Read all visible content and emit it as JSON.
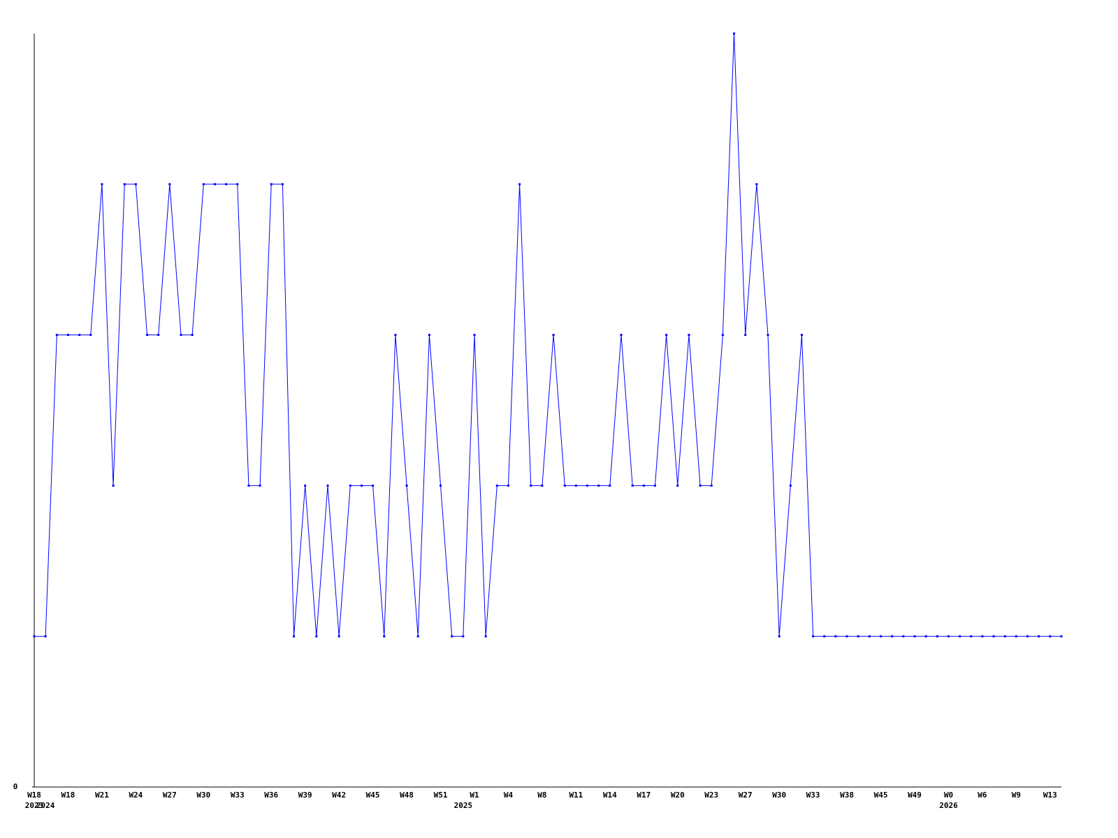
{
  "chart_data": {
    "type": "line",
    "categories": [
      "W18",
      null,
      null,
      "W18",
      null,
      null,
      "W21",
      null,
      null,
      "W24",
      null,
      null,
      "W27",
      null,
      null,
      "W30",
      null,
      null,
      "W33",
      null,
      null,
      "W36",
      null,
      null,
      "W39",
      null,
      null,
      "W42",
      null,
      null,
      "W45",
      null,
      null,
      "W48",
      null,
      null,
      "W51",
      null,
      null,
      "W1",
      null,
      null,
      "W4",
      null,
      null,
      "W8",
      null,
      null,
      "W11",
      null,
      null,
      "W14",
      null,
      null,
      "W17",
      null,
      null,
      "W20",
      null,
      null,
      "W23",
      null,
      null,
      "W27",
      null,
      null,
      "W30",
      null,
      null,
      "W33",
      null,
      null,
      "W38",
      null,
      null,
      "W45",
      null,
      null,
      "W49",
      null,
      null,
      "W0",
      null,
      null,
      "W6",
      null,
      null,
      "W9",
      null,
      null,
      "W13",
      null
    ],
    "year_labels": [
      "2023",
      "2024",
      null,
      null,
      null,
      null,
      null,
      null,
      null,
      null,
      null,
      null,
      null,
      null,
      null,
      null,
      null,
      null,
      null,
      null,
      null,
      null,
      null,
      null,
      null,
      null,
      null,
      null,
      null,
      null,
      null,
      null,
      null,
      null,
      null,
      null,
      null,
      null,
      "2025",
      null,
      null,
      null,
      null,
      null,
      null,
      null,
      null,
      null,
      null,
      null,
      null,
      null,
      null,
      null,
      null,
      null,
      null,
      null,
      null,
      null,
      null,
      null,
      null,
      null,
      null,
      null,
      null,
      null,
      null,
      null,
      null,
      null,
      null,
      null,
      null,
      null,
      null,
      null,
      null,
      null,
      null,
      "2026",
      null,
      null,
      null,
      null,
      null,
      null,
      null,
      null,
      null,
      null
    ],
    "color": "#0000ff",
    "values": [
      1,
      1,
      3,
      3,
      3,
      3,
      4,
      2,
      4,
      4,
      3,
      3,
      4,
      3,
      3,
      4,
      4,
      4,
      4,
      2,
      2,
      4,
      4,
      1,
      2,
      1,
      2,
      1,
      2,
      2,
      2,
      1,
      3,
      2,
      1,
      3,
      2,
      1,
      1,
      3,
      1,
      2,
      2,
      4,
      2,
      2,
      3,
      2,
      2,
      2,
      2,
      2,
      3,
      2,
      2,
      2,
      3,
      2,
      3,
      2,
      2,
      3,
      5,
      3,
      4,
      3,
      1,
      2,
      3,
      1,
      1,
      1,
      1,
      1,
      1,
      1,
      1,
      1,
      1,
      1,
      1,
      1,
      1,
      1,
      1,
      1,
      1,
      1,
      1,
      1,
      1,
      1
    ],
    "ylim": [
      0,
      5
    ],
    "yticks": [
      0
    ]
  }
}
